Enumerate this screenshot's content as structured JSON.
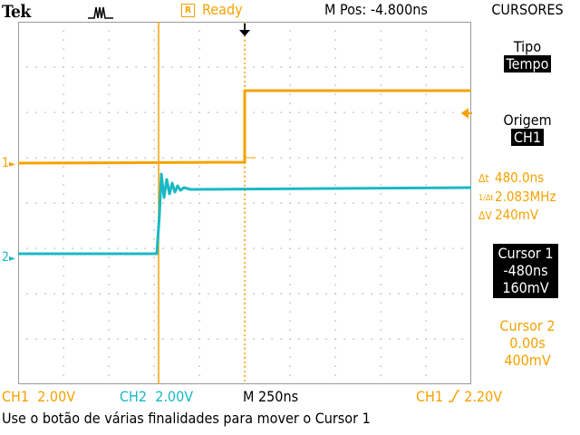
{
  "header": {
    "brand": "Tek",
    "trigger_icon": "acquire-waveform-icon",
    "status_mark": "R",
    "status": "Ready",
    "horizontal_position": "M Pos: -4.800ns",
    "menu_title": "CURSORES"
  },
  "menu": {
    "type_label": "Tipo",
    "type_value": "Tempo",
    "source_label": "Origem",
    "source_value": "CH1",
    "delta_t": "480.0ns",
    "inv_delta_t": "2.083MHz",
    "delta_v": "240mV",
    "cursor1": {
      "title": "Cursor 1",
      "time": "-480ns",
      "voltage": "160mV"
    },
    "cursor2": {
      "title": "Cursor 2",
      "time": "0.00s",
      "voltage": "400mV"
    }
  },
  "markers": {
    "ch1": "1",
    "ch2": "2"
  },
  "footer": {
    "ch1_label": "CH1",
    "ch1_scale": "2.00V",
    "ch2_label": "CH2",
    "ch2_scale": "2.00V",
    "timebase": "M 250ns",
    "trigger_source": "CH1",
    "trigger_level": "2.20V",
    "help": "Use o botão de várias finalidades para mover o Cursor 1"
  },
  "colors": {
    "ch1": "#f5a200",
    "ch2": "#19b9c4",
    "graticule": "#9a9a9a"
  }
}
